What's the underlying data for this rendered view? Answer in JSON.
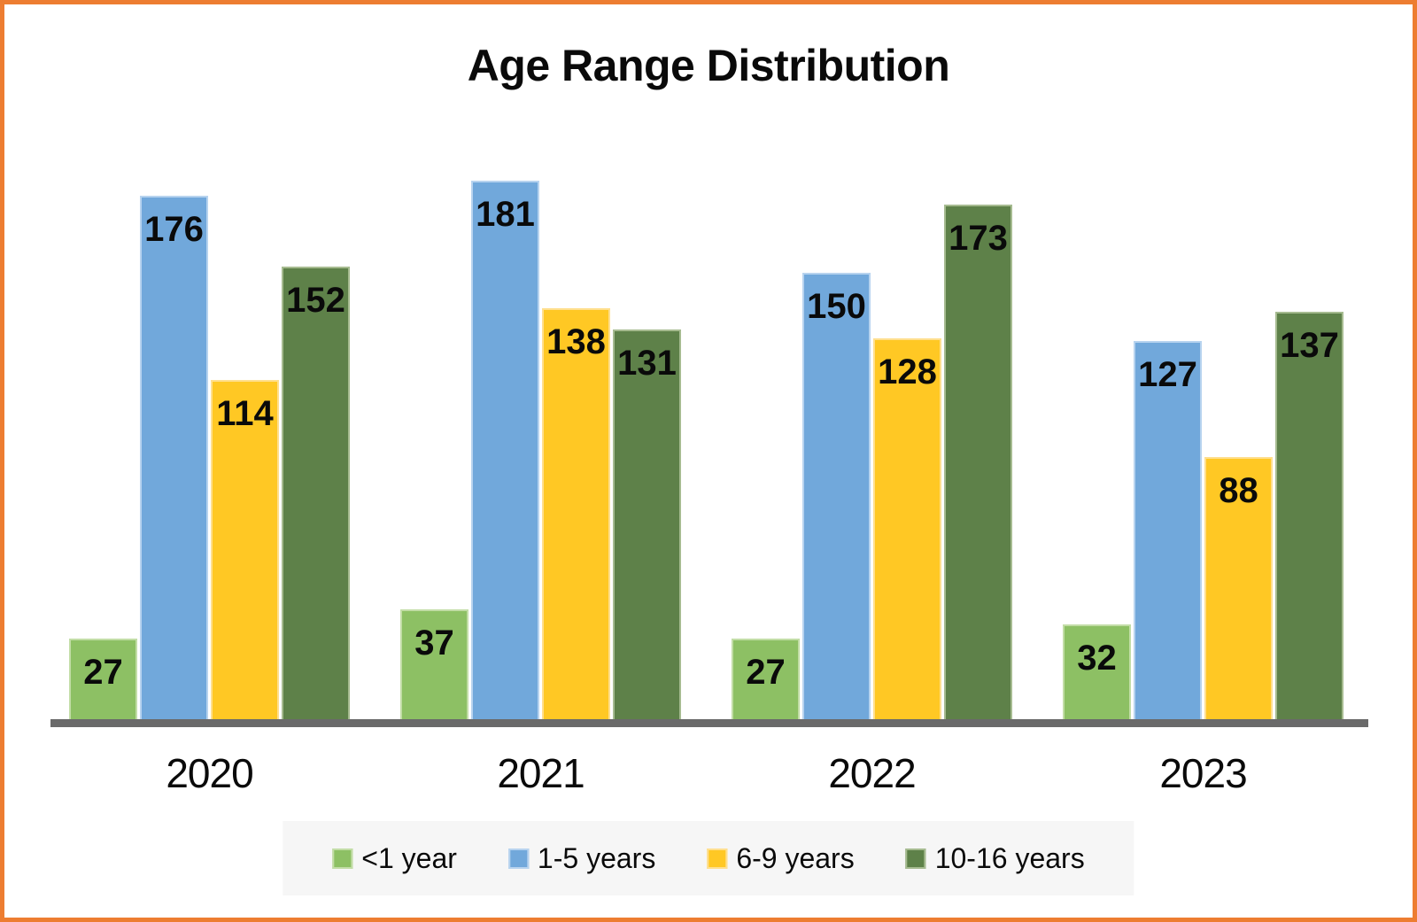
{
  "page": {
    "border_color": "#ED7D31",
    "background": "#FFFFFF"
  },
  "title": "Age Range Distribution",
  "chart_data": {
    "type": "bar",
    "title": "Age Range Distribution",
    "categories": [
      "2020",
      "2021",
      "2022",
      "2023"
    ],
    "series": [
      {
        "name": "<1 year",
        "color": "#8DC064",
        "border_color": "#C2DDA6",
        "values": [
          27,
          37,
          27,
          32
        ]
      },
      {
        "name": "1-5 years",
        "color": "#71A8DB",
        "border_color": "#B7D3EF",
        "values": [
          176,
          181,
          150,
          127
        ]
      },
      {
        "name": "6-9 years",
        "color": "#FFC824",
        "border_color": "#FFDF8E",
        "values": [
          114,
          138,
          128,
          88
        ]
      },
      {
        "name": "10-16 years",
        "color": "#5E8149",
        "border_color": "#A6BB90",
        "values": [
          152,
          131,
          173,
          137
        ]
      }
    ],
    "value_labels": "inside-end",
    "legend_position": "bottom",
    "legend_background": "#F6F6F6",
    "axis": {
      "baseline_color": "#6A6A6A",
      "ylim": [
        0,
        185
      ],
      "gridlines": false,
      "y_axis_visible": false
    }
  }
}
